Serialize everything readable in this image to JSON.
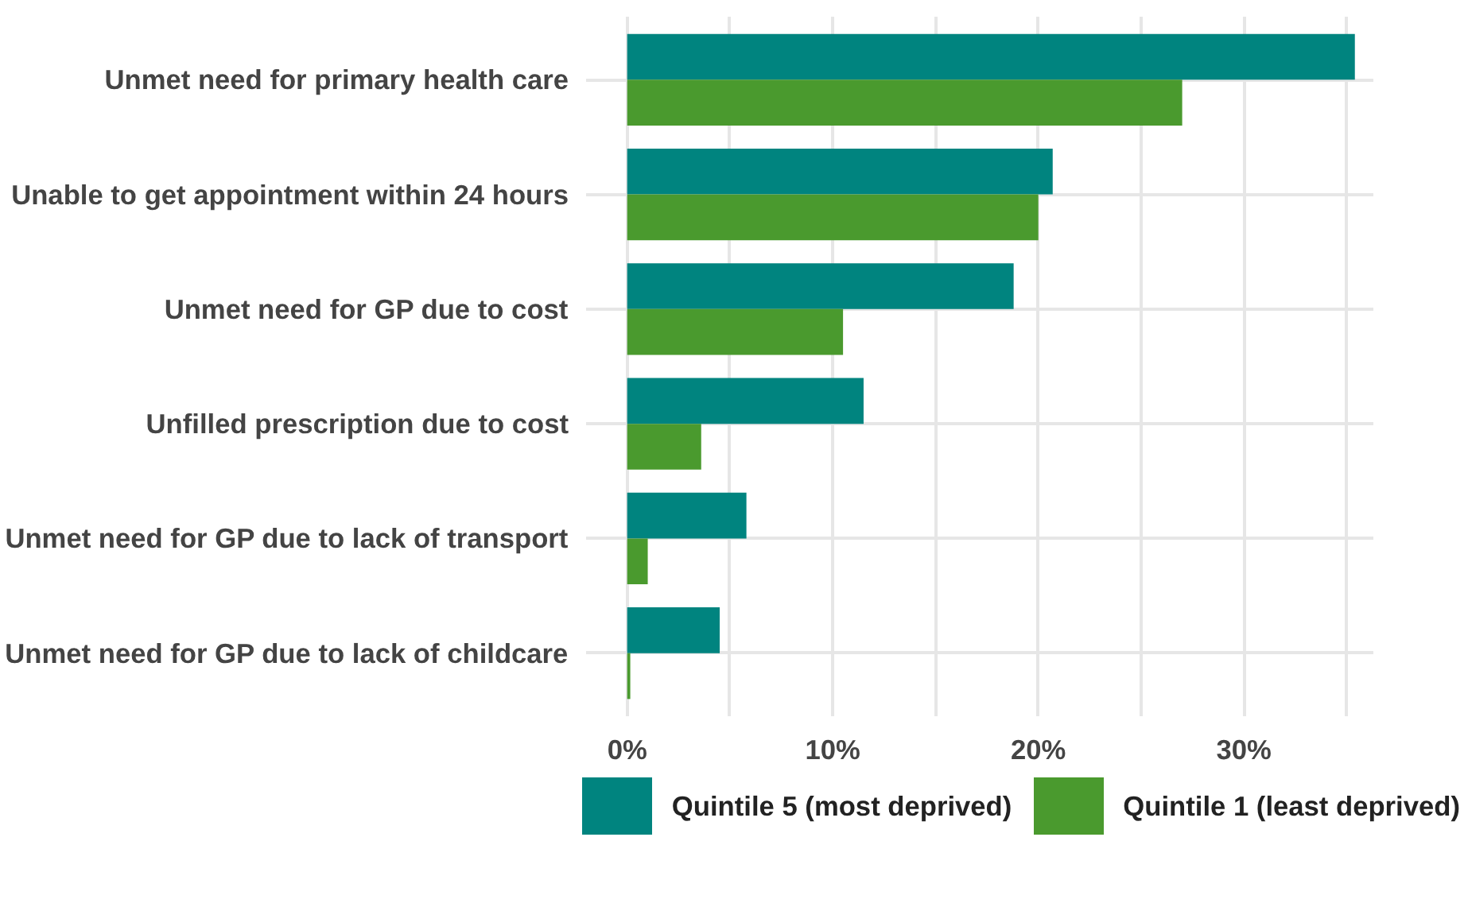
{
  "chart_data": {
    "type": "bar",
    "orientation": "horizontal",
    "categories": [
      "Unmet need for primary health care",
      "Unable to get appointment within 24 hours",
      "Unmet need for GP due to cost",
      "Unfilled prescription due to cost",
      "Unmet need for GP due to lack of transport",
      "Unmet need for GP due to lack of childcare"
    ],
    "series": [
      {
        "name": "Quintile 5 (most deprived)",
        "color": "#00847f",
        "values": [
          35.4,
          20.7,
          18.8,
          11.5,
          5.8,
          4.5
        ]
      },
      {
        "name": "Quintile 1 (least deprived)",
        "color": "#4a9a2e",
        "values": [
          27.0,
          20.0,
          10.5,
          3.6,
          1.0,
          0.15
        ]
      }
    ],
    "xlim": [
      -2,
      36.3
    ],
    "xticks": [
      {
        "value": 0,
        "label": "0%"
      },
      {
        "value": 5,
        "label": null
      },
      {
        "value": 10,
        "label": "10%"
      },
      {
        "value": 15,
        "label": null
      },
      {
        "value": 20,
        "label": "20%"
      },
      {
        "value": 25,
        "label": null
      },
      {
        "value": 30,
        "label": "30%"
      },
      {
        "value": 35,
        "label": null
      }
    ],
    "grid": true,
    "legend": "bottom"
  }
}
